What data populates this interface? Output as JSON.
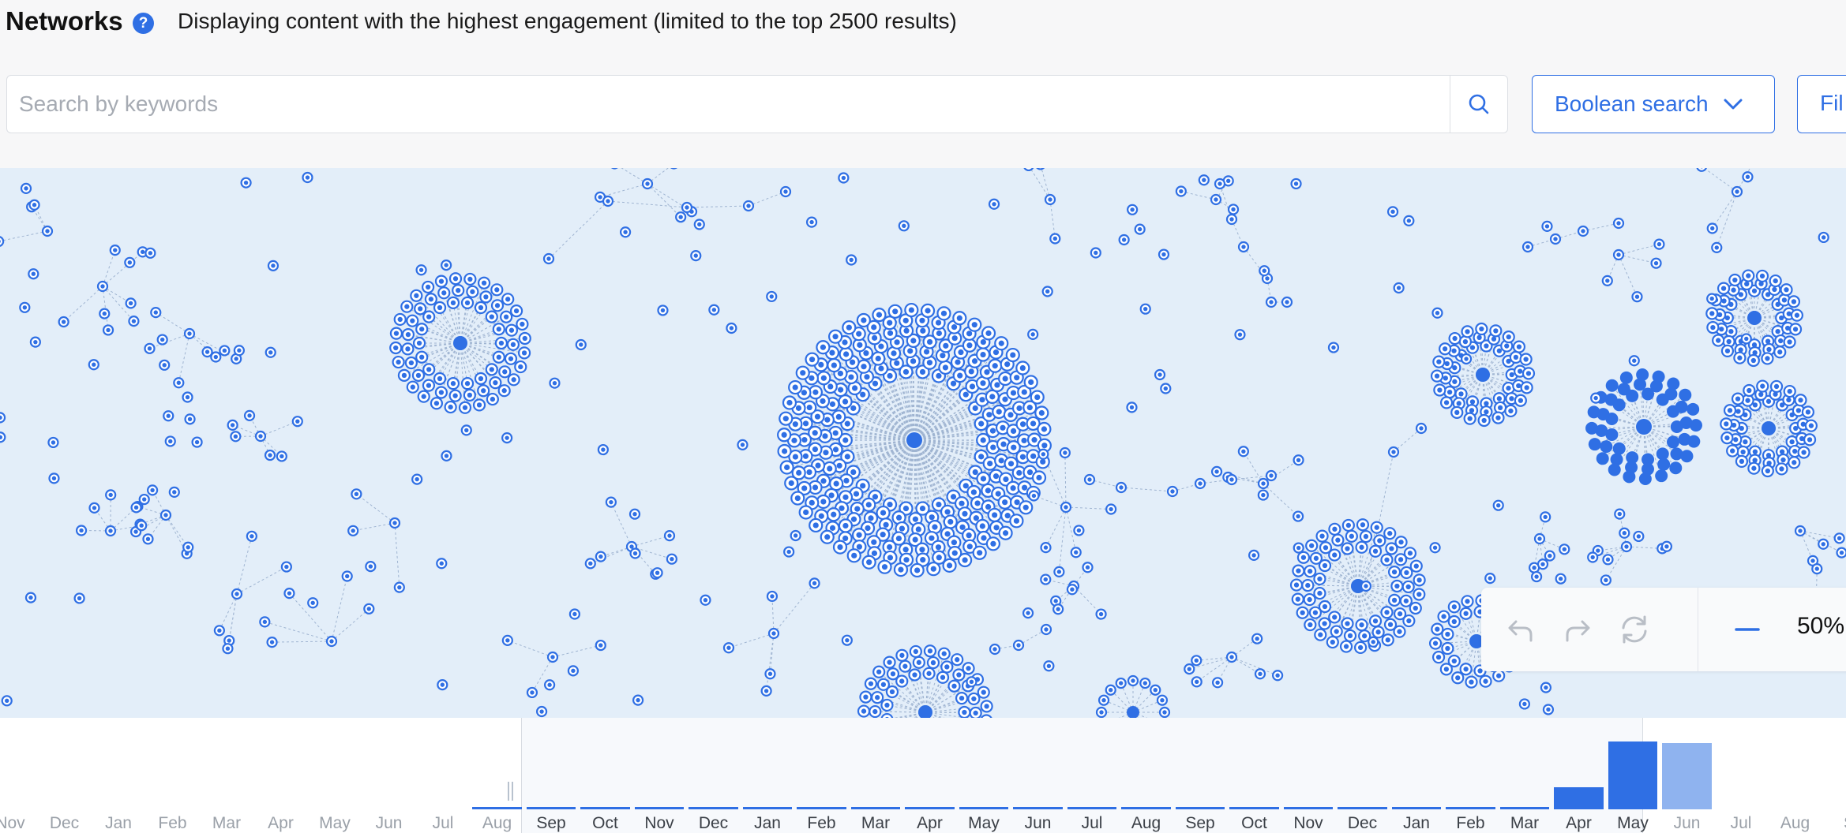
{
  "header": {
    "title": "Networks",
    "help_icon": "?",
    "subtitle": "Displaying content with the highest engagement (limited to the top 2500 results)"
  },
  "search": {
    "placeholder": "Search by keywords",
    "value": "",
    "button_icon": "search-icon"
  },
  "toolbar": {
    "boolean_label": "Boolean search",
    "filter_label": "Fil"
  },
  "graph_controls": {
    "undo_icon": "undo-icon",
    "redo_icon": "redo-icon",
    "reset_icon": "refresh-icon",
    "zoom_out_icon": "minus-icon",
    "zoom_level": "50%"
  },
  "timeline": {
    "labels": [
      "Nov",
      "Dec",
      "Jan",
      "Feb",
      "Mar",
      "Apr",
      "May",
      "Jun",
      "Jul",
      "Aug",
      "Sep",
      "Oct",
      "Nov",
      "Dec",
      "Jan",
      "Feb",
      "Mar",
      "Apr",
      "May",
      "Jun",
      "Jul",
      "Aug",
      "Sep",
      "Oct",
      "Nov",
      "Dec",
      "Jan",
      "Feb",
      "Mar",
      "Apr",
      "May",
      "Jun",
      "Jul",
      "Aug",
      "S"
    ],
    "activity": [
      0,
      0,
      0,
      0,
      0,
      0,
      0,
      0,
      0,
      0.02,
      0.02,
      0.02,
      0.02,
      0.02,
      0.02,
      0.02,
      0.02,
      0.02,
      0.02,
      0.02,
      0.02,
      0.02,
      0.02,
      0.02,
      0.02,
      0.02,
      0.04,
      0.02,
      0.04,
      0.32,
      1.0,
      0.98,
      0,
      0,
      0
    ]
  },
  "colors": {
    "accent": "#2f6fe4",
    "graph_bg": "#e3eef9",
    "node": "#2f6fe4",
    "node_light": "#8fb3ef",
    "edge": "#9fb4d1"
  }
}
